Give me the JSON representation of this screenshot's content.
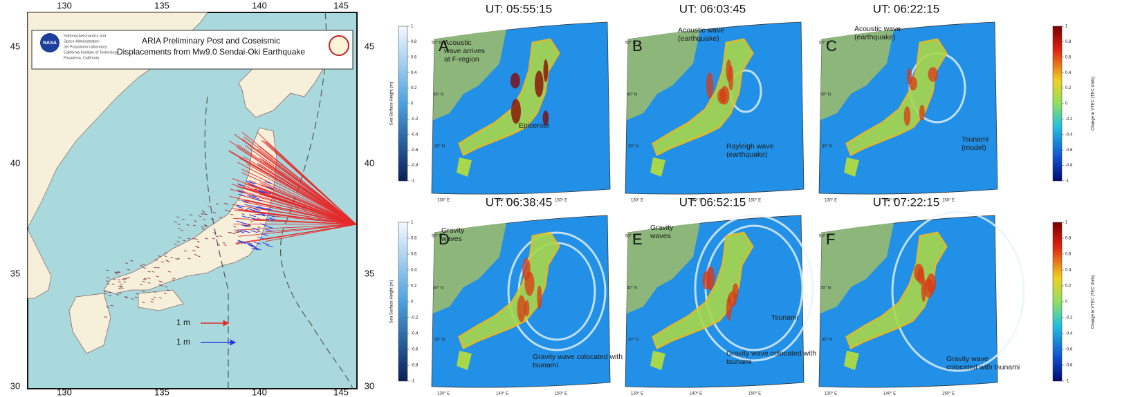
{
  "left_map": {
    "logo": "NASA",
    "agency_lines": [
      "National Aeronautics and",
      "Space Administration",
      "Jet Propulsion Laboratory",
      "California Institute of Technology",
      "Pasadena, California"
    ],
    "title_lines": [
      "ARIA Preliminary Post and Coseismic",
      "Displacements from Mw9.0 Sendai-Oki Earthquake"
    ],
    "lon_ticks": [
      130,
      135,
      140,
      145
    ],
    "lat_ticks": [
      45,
      40,
      35,
      30
    ],
    "legend": [
      "1 m",
      "1 m"
    ]
  },
  "colorbars": {
    "left_label": "Sea Surface Height (m)",
    "right_label": "Change in VTEC (TEC Units)",
    "ticks": [
      1,
      0.8,
      0.6,
      0.4,
      0.2,
      0,
      -0.2,
      -0.4,
      -0.6,
      -0.8,
      -1
    ]
  },
  "grid_labels": {
    "lat": [
      "50° N",
      "40° N",
      "30° N"
    ],
    "lon": [
      "130° E",
      "140° E",
      "150° E"
    ]
  },
  "panels": [
    {
      "letter": "A",
      "time": "UT: 05:55:15",
      "annotations": [
        {
          "lines": [
            "Acoustic",
            "wave arrives",
            "at F-region"
          ]
        },
        {
          "lines": [
            "Epicenter"
          ]
        }
      ]
    },
    {
      "letter": "B",
      "time": "UT: 06:03:45",
      "annotations": [
        {
          "lines": [
            "Acoustic wave",
            "(earthquake)"
          ]
        },
        {
          "lines": [
            "Rayleigh wave",
            "(earthquake)"
          ]
        }
      ]
    },
    {
      "letter": "C",
      "time": "UT: 06:22:15",
      "annotations": [
        {
          "lines": [
            "Acoustic wave",
            "(earthquake)"
          ]
        },
        {
          "lines": [
            "Tsunami",
            "(model)"
          ]
        }
      ]
    },
    {
      "letter": "D",
      "time": "UT: 06:38:45",
      "annotations": [
        {
          "lines": [
            "Gravity",
            "waves"
          ]
        },
        {
          "lines": [
            "Gravity wave colocated with",
            "tsunami"
          ]
        }
      ]
    },
    {
      "letter": "E",
      "time": "UT: 06:52:15",
      "annotations": [
        {
          "lines": [
            "Gravity",
            "waves"
          ]
        },
        {
          "lines": [
            "Tsunami"
          ]
        },
        {
          "lines": [
            "Gravity wave colocated with",
            "tsunami"
          ]
        }
      ]
    },
    {
      "letter": "F",
      "time": "UT: 07:22:15",
      "annotations": [
        {
          "lines": [
            "Gravity wave",
            "colocated with tsunami"
          ]
        }
      ]
    }
  ]
}
